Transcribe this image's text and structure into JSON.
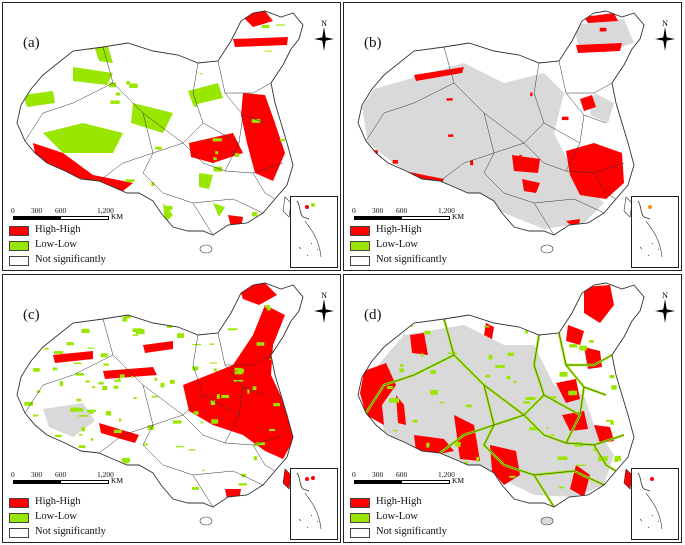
{
  "colors": {
    "high_high": "#ff0000",
    "low_low": "#99e600",
    "not_significant": "#ffffff",
    "gray_fill": "#d9d9d9",
    "boundary": "#333333"
  },
  "panels": [
    {
      "label": "(a)",
      "pattern": "a"
    },
    {
      "label": "(b)",
      "pattern": "b"
    },
    {
      "label": "(c)",
      "pattern": "c"
    },
    {
      "label": "(d)",
      "pattern": "d"
    }
  ],
  "scale_bar": {
    "ticks": [
      "0",
      "300",
      "600",
      "1,200"
    ],
    "unit": "KM"
  },
  "compass_label": "N",
  "legend": {
    "high_high": "High-High",
    "low_low": "Low-Low",
    "not_significant": "Not significantly"
  },
  "icons": [
    "compass-icon",
    "scale-bar-icon",
    "south-china-sea-inset-icon"
  ]
}
